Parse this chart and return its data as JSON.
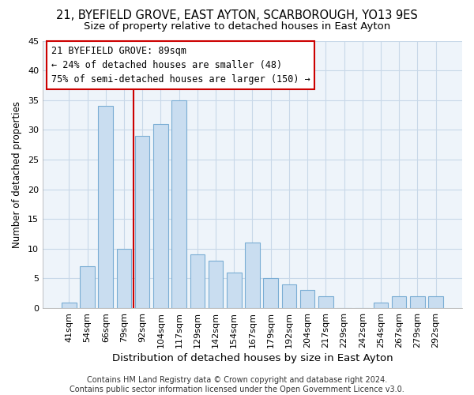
{
  "title": "21, BYEFIELD GROVE, EAST AYTON, SCARBOROUGH, YO13 9ES",
  "subtitle": "Size of property relative to detached houses in East Ayton",
  "xlabel": "Distribution of detached houses by size in East Ayton",
  "ylabel": "Number of detached properties",
  "categories": [
    "41sqm",
    "54sqm",
    "66sqm",
    "79sqm",
    "92sqm",
    "104sqm",
    "117sqm",
    "129sqm",
    "142sqm",
    "154sqm",
    "167sqm",
    "179sqm",
    "192sqm",
    "204sqm",
    "217sqm",
    "229sqm",
    "242sqm",
    "254sqm",
    "267sqm",
    "279sqm",
    "292sqm"
  ],
  "values": [
    1,
    7,
    34,
    10,
    29,
    31,
    35,
    9,
    8,
    6,
    11,
    5,
    4,
    3,
    2,
    0,
    0,
    1,
    2,
    2,
    2
  ],
  "bar_color": "#c9ddf0",
  "bar_edge_color": "#7aadd4",
  "vline_x_index": 4,
  "vline_color": "#cc0000",
  "annotation_line1": "21 BYEFIELD GROVE: 89sqm",
  "annotation_line2": "← 24% of detached houses are smaller (48)",
  "annotation_line3": "75% of semi-detached houses are larger (150) →",
  "annotation_box_edge": "#cc0000",
  "annotation_box_face": "white",
  "ylim": [
    0,
    45
  ],
  "yticks": [
    0,
    5,
    10,
    15,
    20,
    25,
    30,
    35,
    40,
    45
  ],
  "grid_color": "#c8d8e8",
  "plot_bg_color": "#eef4fa",
  "fig_bg_color": "#ffffff",
  "footer": "Contains HM Land Registry data © Crown copyright and database right 2024.\nContains public sector information licensed under the Open Government Licence v3.0.",
  "title_fontsize": 10.5,
  "subtitle_fontsize": 9.5,
  "xlabel_fontsize": 9.5,
  "ylabel_fontsize": 8.5,
  "tick_fontsize": 8,
  "annotation_fontsize": 8.5,
  "footer_fontsize": 7
}
